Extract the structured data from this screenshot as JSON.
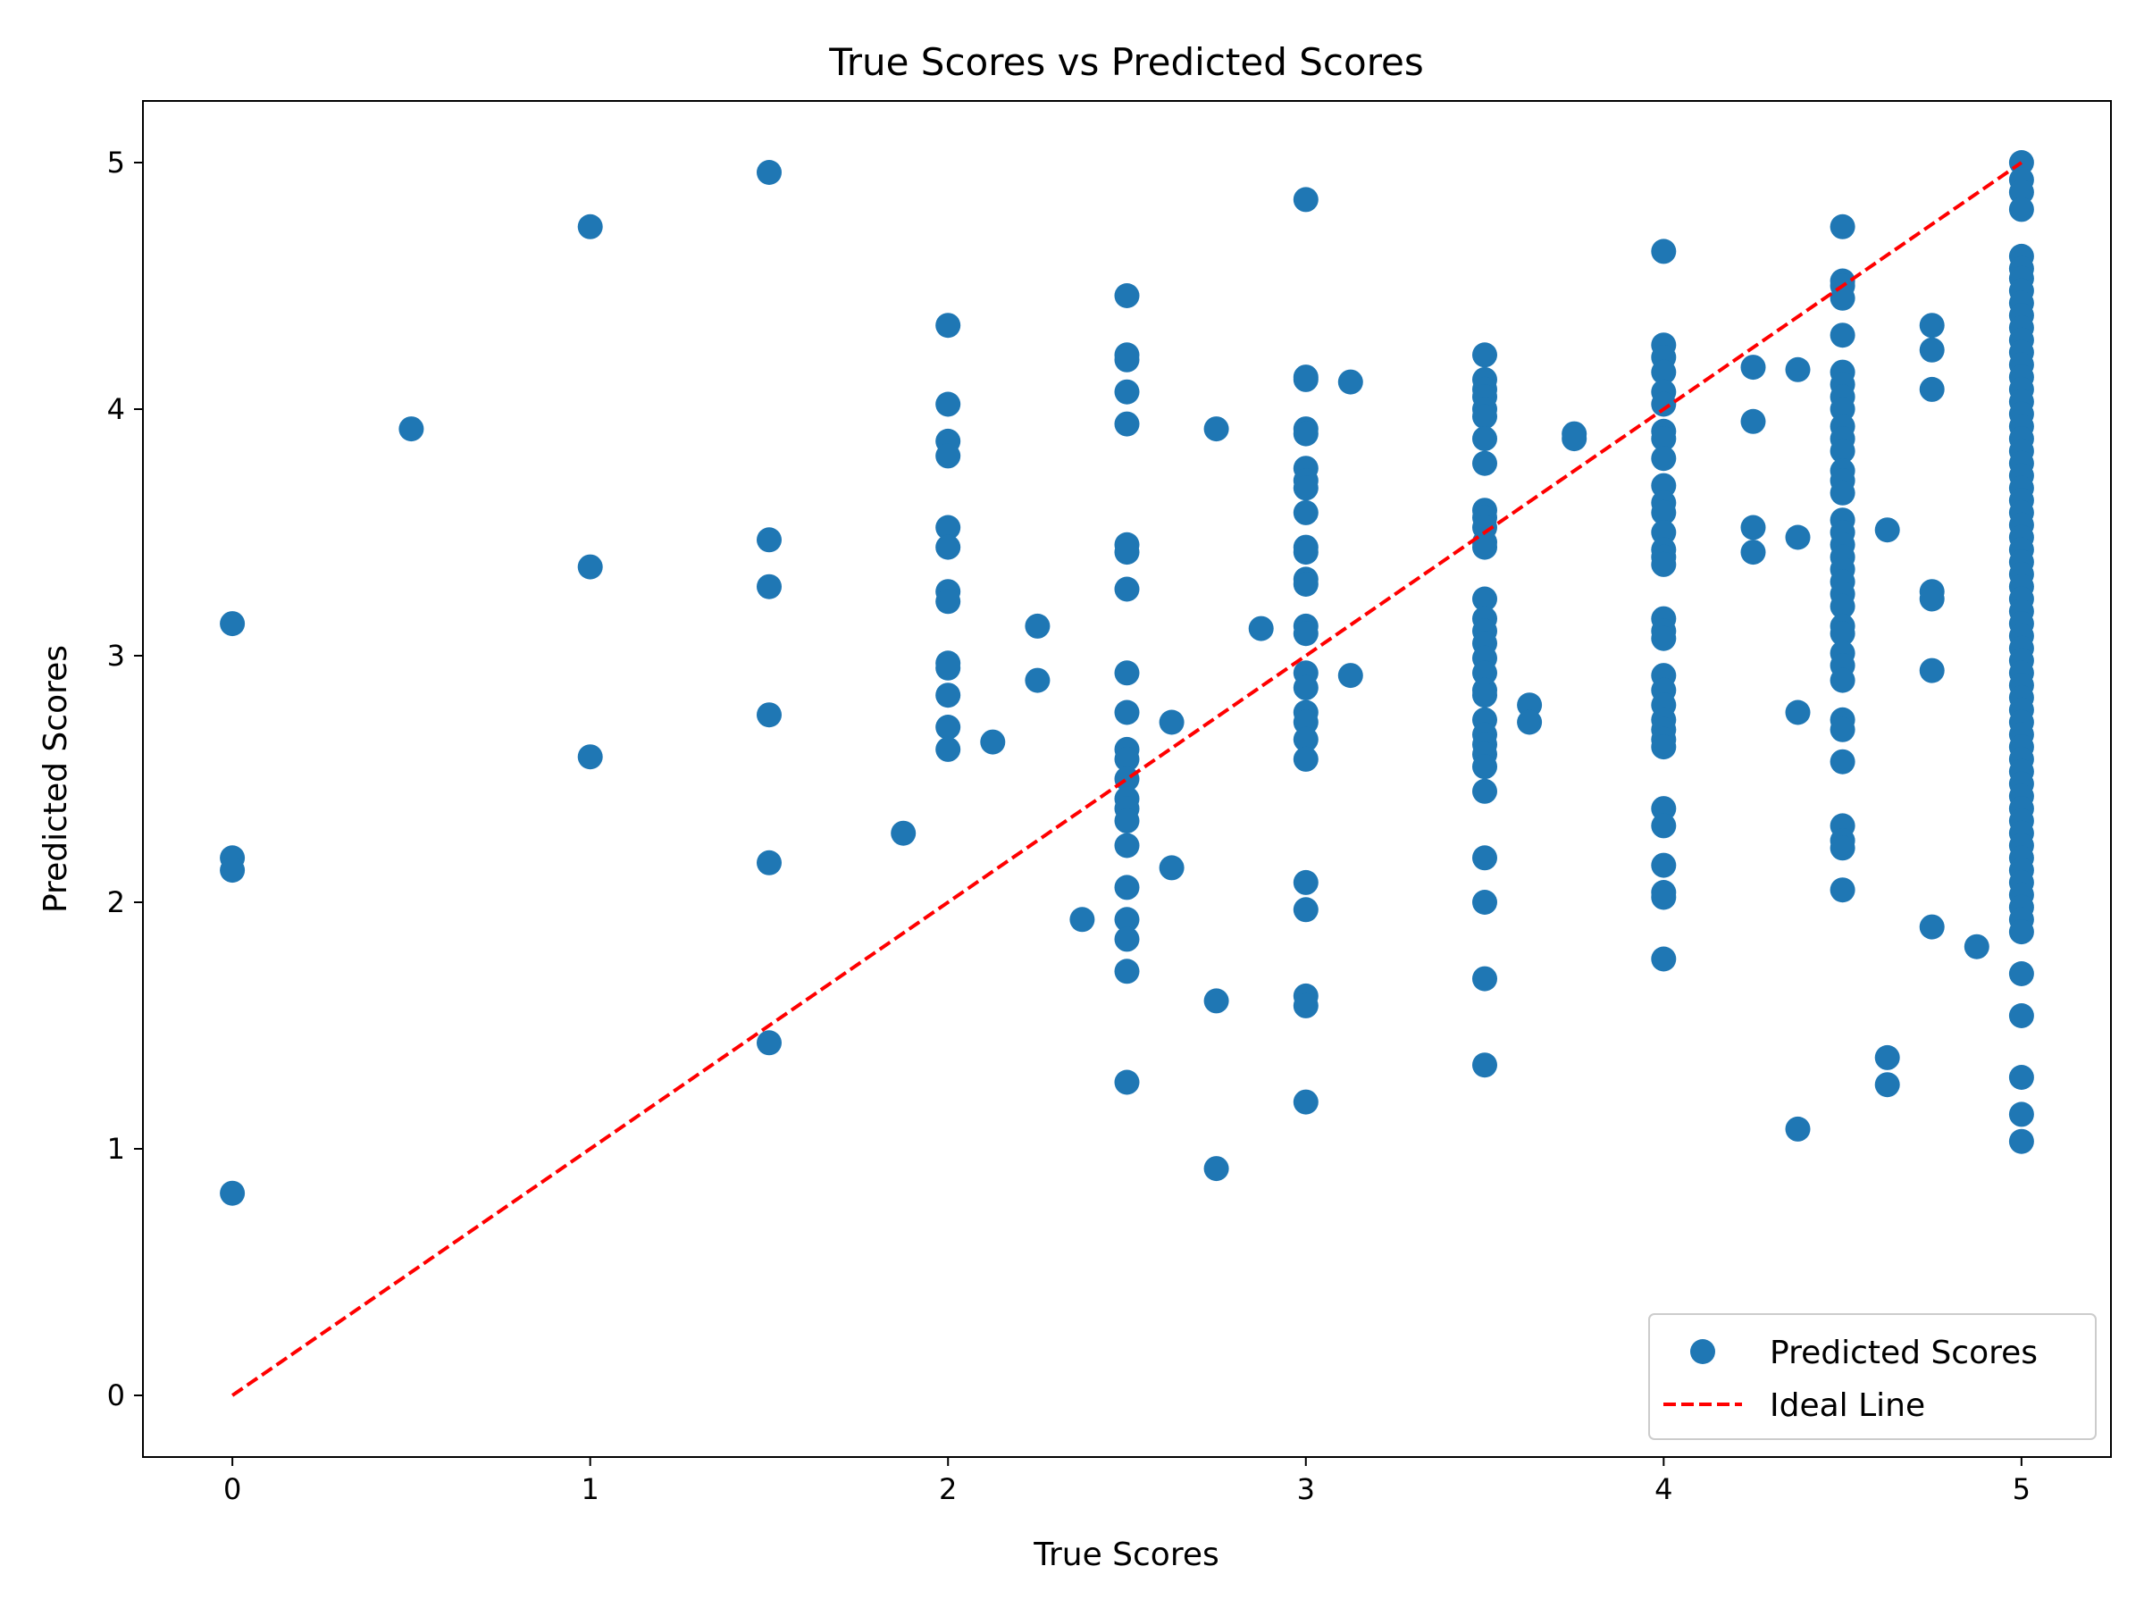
{
  "chart_data": {
    "type": "scatter",
    "title": "True Scores vs Predicted Scores",
    "xlabel": "True Scores",
    "ylabel": "Predicted Scores",
    "xlim": [
      -0.25,
      5.25
    ],
    "ylim": [
      -0.25,
      5.25
    ],
    "xticks": [
      0,
      1,
      2,
      3,
      4,
      5
    ],
    "yticks": [
      0,
      1,
      2,
      3,
      4,
      5
    ],
    "grid": false,
    "legend_position": "bottom-right",
    "legend": [
      {
        "label": "Predicted Scores",
        "kind": "marker"
      },
      {
        "label": "Ideal Line",
        "kind": "dashed-line"
      }
    ],
    "series": [
      {
        "name": "Predicted Scores",
        "kind": "scatter",
        "color": "#1f77b4",
        "points": [
          [
            0,
            3.13
          ],
          [
            0,
            2.18
          ],
          [
            0,
            2.13
          ],
          [
            0,
            0.82
          ],
          [
            0.5,
            3.92
          ],
          [
            1,
            4.74
          ],
          [
            1,
            3.36
          ],
          [
            1,
            2.59
          ],
          [
            1.5,
            4.96
          ],
          [
            1.5,
            3.47
          ],
          [
            1.5,
            3.28
          ],
          [
            1.5,
            2.76
          ],
          [
            1.5,
            2.16
          ],
          [
            1.5,
            1.43
          ],
          [
            1.875,
            2.28
          ],
          [
            2,
            4.34
          ],
          [
            2,
            4.02
          ],
          [
            2,
            3.87
          ],
          [
            2,
            3.81
          ],
          [
            2,
            3.52
          ],
          [
            2,
            3.44
          ],
          [
            2,
            3.26
          ],
          [
            2,
            3.22
          ],
          [
            2,
            2.97
          ],
          [
            2,
            2.95
          ],
          [
            2,
            2.84
          ],
          [
            2,
            2.71
          ],
          [
            2,
            2.62
          ],
          [
            2.125,
            2.65
          ],
          [
            2.25,
            3.12
          ],
          [
            2.25,
            2.9
          ],
          [
            2.375,
            1.93
          ],
          [
            2.5,
            4.46
          ],
          [
            2.5,
            4.22
          ],
          [
            2.5,
            4.2
          ],
          [
            2.5,
            4.07
          ],
          [
            2.5,
            3.94
          ],
          [
            2.5,
            3.45
          ],
          [
            2.5,
            3.42
          ],
          [
            2.5,
            3.27
          ],
          [
            2.5,
            2.93
          ],
          [
            2.5,
            2.77
          ],
          [
            2.5,
            2.62
          ],
          [
            2.5,
            2.58
          ],
          [
            2.5,
            2.5
          ],
          [
            2.5,
            2.42
          ],
          [
            2.5,
            2.38
          ],
          [
            2.5,
            2.33
          ],
          [
            2.5,
            2.23
          ],
          [
            2.5,
            2.06
          ],
          [
            2.5,
            1.93
          ],
          [
            2.5,
            1.85
          ],
          [
            2.5,
            1.72
          ],
          [
            2.5,
            1.27
          ],
          [
            2.625,
            2.73
          ],
          [
            2.625,
            2.14
          ],
          [
            2.75,
            3.92
          ],
          [
            2.75,
            1.6
          ],
          [
            2.75,
            0.92
          ],
          [
            2.875,
            3.11
          ],
          [
            3,
            4.85
          ],
          [
            3,
            4.13
          ],
          [
            3,
            4.12
          ],
          [
            3,
            3.92
          ],
          [
            3,
            3.9
          ],
          [
            3,
            3.76
          ],
          [
            3,
            3.71
          ],
          [
            3,
            3.68
          ],
          [
            3,
            3.58
          ],
          [
            3,
            3.44
          ],
          [
            3,
            3.42
          ],
          [
            3,
            3.31
          ],
          [
            3,
            3.29
          ],
          [
            3,
            3.12
          ],
          [
            3,
            3.09
          ],
          [
            3,
            2.93
          ],
          [
            3,
            2.87
          ],
          [
            3,
            2.77
          ],
          [
            3,
            2.73
          ],
          [
            3,
            2.66
          ],
          [
            3,
            2.58
          ],
          [
            3,
            2.08
          ],
          [
            3,
            1.97
          ],
          [
            3,
            1.62
          ],
          [
            3,
            1.58
          ],
          [
            3,
            1.19
          ],
          [
            3.125,
            4.11
          ],
          [
            3.125,
            2.92
          ],
          [
            3.5,
            4.22
          ],
          [
            3.5,
            4.12
          ],
          [
            3.5,
            4.08
          ],
          [
            3.5,
            4.05
          ],
          [
            3.5,
            4.0
          ],
          [
            3.5,
            3.97
          ],
          [
            3.5,
            3.88
          ],
          [
            3.5,
            3.78
          ],
          [
            3.5,
            3.59
          ],
          [
            3.5,
            3.56
          ],
          [
            3.5,
            3.52
          ],
          [
            3.5,
            3.46
          ],
          [
            3.5,
            3.44
          ],
          [
            3.5,
            3.23
          ],
          [
            3.5,
            3.15
          ],
          [
            3.5,
            3.1
          ],
          [
            3.5,
            3.05
          ],
          [
            3.5,
            2.99
          ],
          [
            3.5,
            2.93
          ],
          [
            3.5,
            2.86
          ],
          [
            3.5,
            2.84
          ],
          [
            3.5,
            2.74
          ],
          [
            3.5,
            2.68
          ],
          [
            3.5,
            2.64
          ],
          [
            3.5,
            2.6
          ],
          [
            3.5,
            2.55
          ],
          [
            3.5,
            2.45
          ],
          [
            3.5,
            2.18
          ],
          [
            3.5,
            2.0
          ],
          [
            3.5,
            1.69
          ],
          [
            3.5,
            1.34
          ],
          [
            3.625,
            2.8
          ],
          [
            3.625,
            2.73
          ],
          [
            3.75,
            3.9
          ],
          [
            3.75,
            3.88
          ],
          [
            4,
            4.64
          ],
          [
            4,
            4.26
          ],
          [
            4,
            4.21
          ],
          [
            4,
            4.15
          ],
          [
            4,
            4.07
          ],
          [
            4,
            4.02
          ],
          [
            4,
            3.91
          ],
          [
            4,
            3.88
          ],
          [
            4,
            3.8
          ],
          [
            4,
            3.69
          ],
          [
            4,
            3.62
          ],
          [
            4,
            3.58
          ],
          [
            4,
            3.5
          ],
          [
            4,
            3.43
          ],
          [
            4,
            3.4
          ],
          [
            4,
            3.37
          ],
          [
            4,
            3.15
          ],
          [
            4,
            3.1
          ],
          [
            4,
            3.07
          ],
          [
            4,
            2.92
          ],
          [
            4,
            2.86
          ],
          [
            4,
            2.8
          ],
          [
            4,
            2.74
          ],
          [
            4,
            2.7
          ],
          [
            4,
            2.66
          ],
          [
            4,
            2.63
          ],
          [
            4,
            2.38
          ],
          [
            4,
            2.31
          ],
          [
            4,
            2.15
          ],
          [
            4,
            2.04
          ],
          [
            4,
            2.02
          ],
          [
            4,
            1.77
          ],
          [
            4.25,
            4.17
          ],
          [
            4.25,
            3.95
          ],
          [
            4.25,
            3.52
          ],
          [
            4.25,
            3.42
          ],
          [
            4.375,
            4.16
          ],
          [
            4.375,
            3.48
          ],
          [
            4.375,
            2.77
          ],
          [
            4.375,
            1.08
          ],
          [
            4.5,
            4.74
          ],
          [
            4.5,
            4.52
          ],
          [
            4.5,
            4.5
          ],
          [
            4.5,
            4.45
          ],
          [
            4.5,
            4.3
          ],
          [
            4.5,
            4.15
          ],
          [
            4.5,
            4.1
          ],
          [
            4.5,
            4.05
          ],
          [
            4.5,
            4.0
          ],
          [
            4.5,
            3.93
          ],
          [
            4.5,
            3.88
          ],
          [
            4.5,
            3.83
          ],
          [
            4.5,
            3.75
          ],
          [
            4.5,
            3.71
          ],
          [
            4.5,
            3.66
          ],
          [
            4.5,
            3.55
          ],
          [
            4.5,
            3.5
          ],
          [
            4.5,
            3.45
          ],
          [
            4.5,
            3.4
          ],
          [
            4.5,
            3.35
          ],
          [
            4.5,
            3.3
          ],
          [
            4.5,
            3.25
          ],
          [
            4.5,
            3.2
          ],
          [
            4.5,
            3.12
          ],
          [
            4.5,
            3.09
          ],
          [
            4.5,
            3.01
          ],
          [
            4.5,
            2.96
          ],
          [
            4.5,
            2.9
          ],
          [
            4.5,
            2.74
          ],
          [
            4.5,
            2.7
          ],
          [
            4.5,
            2.57
          ],
          [
            4.5,
            2.31
          ],
          [
            4.5,
            2.25
          ],
          [
            4.5,
            2.22
          ],
          [
            4.5,
            2.05
          ],
          [
            4.625,
            3.51
          ],
          [
            4.625,
            1.37
          ],
          [
            4.625,
            1.26
          ],
          [
            4.75,
            4.34
          ],
          [
            4.75,
            4.24
          ],
          [
            4.75,
            4.08
          ],
          [
            4.75,
            3.26
          ],
          [
            4.75,
            3.23
          ],
          [
            4.75,
            2.94
          ],
          [
            4.75,
            1.9
          ],
          [
            4.875,
            1.82
          ],
          [
            5,
            5.0
          ],
          [
            5,
            4.93
          ],
          [
            5,
            4.88
          ],
          [
            5,
            4.81
          ],
          [
            5,
            4.62
          ],
          [
            5,
            4.57
          ],
          [
            5,
            4.53
          ],
          [
            5,
            4.48
          ],
          [
            5,
            4.43
          ],
          [
            5,
            4.38
          ],
          [
            5,
            4.33
          ],
          [
            5,
            4.28
          ],
          [
            5,
            4.23
          ],
          [
            5,
            4.18
          ],
          [
            5,
            4.13
          ],
          [
            5,
            4.08
          ],
          [
            5,
            4.03
          ],
          [
            5,
            3.98
          ],
          [
            5,
            3.93
          ],
          [
            5,
            3.88
          ],
          [
            5,
            3.83
          ],
          [
            5,
            3.78
          ],
          [
            5,
            3.73
          ],
          [
            5,
            3.68
          ],
          [
            5,
            3.63
          ],
          [
            5,
            3.58
          ],
          [
            5,
            3.53
          ],
          [
            5,
            3.48
          ],
          [
            5,
            3.43
          ],
          [
            5,
            3.38
          ],
          [
            5,
            3.33
          ],
          [
            5,
            3.28
          ],
          [
            5,
            3.23
          ],
          [
            5,
            3.18
          ],
          [
            5,
            3.13
          ],
          [
            5,
            3.08
          ],
          [
            5,
            3.03
          ],
          [
            5,
            2.98
          ],
          [
            5,
            2.93
          ],
          [
            5,
            2.88
          ],
          [
            5,
            2.83
          ],
          [
            5,
            2.78
          ],
          [
            5,
            2.73
          ],
          [
            5,
            2.68
          ],
          [
            5,
            2.63
          ],
          [
            5,
            2.58
          ],
          [
            5,
            2.53
          ],
          [
            5,
            2.48
          ],
          [
            5,
            2.43
          ],
          [
            5,
            2.38
          ],
          [
            5,
            2.33
          ],
          [
            5,
            2.28
          ],
          [
            5,
            2.23
          ],
          [
            5,
            2.18
          ],
          [
            5,
            2.13
          ],
          [
            5,
            2.08
          ],
          [
            5,
            2.03
          ],
          [
            5,
            1.98
          ],
          [
            5,
            1.93
          ],
          [
            5,
            1.88
          ],
          [
            5,
            1.71
          ],
          [
            5,
            1.54
          ],
          [
            5,
            1.29
          ],
          [
            5,
            1.14
          ],
          [
            5,
            1.03
          ]
        ]
      },
      {
        "name": "Ideal Line",
        "kind": "line",
        "style": "dashed",
        "color": "#ff0000",
        "points": [
          [
            0,
            0
          ],
          [
            5,
            5
          ]
        ]
      }
    ]
  }
}
